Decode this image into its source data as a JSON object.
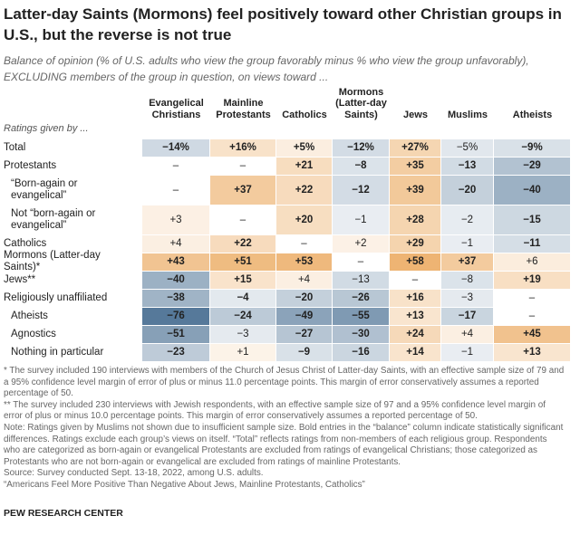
{
  "chart_data": {
    "type": "heatmap",
    "title": "Latter-day Saints (Mormons) feel positively toward other Christian groups in U.S., but the reverse is not true",
    "subtitle": "Balance of opinion (% of U.S. adults who view the group favorably minus % who view the group unfavorably), EXCLUDING members of the group in question, on views toward ...",
    "row_header": "Ratings given by ...",
    "columns": [
      "Evangelical\nChristians",
      "Mainline\nProtestants",
      "Catholics",
      "Mormons\n(Latter-day\nSaints)",
      "Jews",
      "Muslims",
      "Atheists"
    ],
    "positive_color": "#e9a04e",
    "negative_color": "#56799a",
    "rows": [
      {
        "label": "Total",
        "values": [
          -14,
          16,
          5,
          -12,
          27,
          -5,
          -9
        ],
        "value_labels": [
          "−14%",
          "+16%",
          "+5%",
          "−12%",
          "+27%",
          "−5%",
          "−9%"
        ],
        "bold": [
          true,
          true,
          true,
          true,
          true,
          false,
          true
        ]
      },
      {
        "label": "Protestants",
        "values": [
          null,
          null,
          21,
          -8,
          35,
          -13,
          -29
        ],
        "value_labels": [
          "–",
          "–",
          "+21",
          "−8",
          "+35",
          "−13",
          "−29"
        ],
        "bold": [
          false,
          false,
          true,
          true,
          true,
          true,
          true
        ],
        "subgroups": [
          {
            "label": "“Born-again or\nevangelical”",
            "values": [
              null,
              37,
              22,
              -12,
              39,
              -20,
              -40
            ],
            "value_labels": [
              "–",
              "+37",
              "+22",
              "−12",
              "+39",
              "−20",
              "−40"
            ],
            "bold": [
              false,
              true,
              true,
              true,
              true,
              true,
              true
            ]
          },
          {
            "label": "Not “born-again or\nevangelical”",
            "values": [
              3,
              null,
              20,
              -1,
              28,
              -2,
              -15
            ],
            "value_labels": [
              "+3",
              "–",
              "+20",
              "−1",
              "+28",
              "−2",
              "−15"
            ],
            "bold": [
              false,
              false,
              true,
              false,
              true,
              false,
              true
            ]
          }
        ]
      },
      {
        "label": "Catholics",
        "values": [
          4,
          22,
          null,
          2,
          29,
          -1,
          -11
        ],
        "value_labels": [
          "+4",
          "+22",
          "–",
          "+2",
          "+29",
          "−1",
          "−11"
        ],
        "bold": [
          false,
          true,
          false,
          false,
          true,
          false,
          true
        ]
      },
      {
        "label": "Mormons (Latter-day Saints)*",
        "values": [
          43,
          51,
          53,
          null,
          58,
          37,
          6
        ],
        "value_labels": [
          "+43",
          "+51",
          "+53",
          "–",
          "+58",
          "+37",
          "+6"
        ],
        "bold": [
          true,
          true,
          true,
          false,
          true,
          true,
          false
        ]
      },
      {
        "label": "Jews**",
        "values": [
          -40,
          15,
          4,
          -13,
          null,
          -8,
          19
        ],
        "value_labels": [
          "−40",
          "+15",
          "+4",
          "−13",
          "–",
          "−8",
          "+19"
        ],
        "bold": [
          true,
          true,
          false,
          false,
          false,
          false,
          true
        ]
      },
      {
        "label": "Religiously unaffiliated",
        "values": [
          -38,
          -4,
          -20,
          -26,
          16,
          -3,
          null
        ],
        "value_labels": [
          "−38",
          "−4",
          "−20",
          "−26",
          "+16",
          "−3",
          "–"
        ],
        "bold": [
          true,
          true,
          true,
          true,
          true,
          false,
          false
        ],
        "subgroups": [
          {
            "label": "Atheists",
            "values": [
              -76,
              -24,
              -49,
              -55,
              13,
              -17,
              null
            ],
            "value_labels": [
              "−76",
              "−24",
              "−49",
              "−55",
              "+13",
              "−17",
              "–"
            ],
            "bold": [
              true,
              true,
              true,
              true,
              true,
              true,
              false
            ]
          },
          {
            "label": "Agnostics",
            "values": [
              -51,
              -3,
              -27,
              -30,
              24,
              4,
              45
            ],
            "value_labels": [
              "−51",
              "−3",
              "−27",
              "−30",
              "+24",
              "+4",
              "+45"
            ],
            "bold": [
              true,
              false,
              true,
              true,
              true,
              false,
              true
            ]
          },
          {
            "label": "Nothing in particular",
            "values": [
              -23,
              1,
              -9,
              -16,
              14,
              -1,
              13
            ],
            "value_labels": [
              "−23",
              "+1",
              "−9",
              "−16",
              "+14",
              "−1",
              "+13"
            ],
            "bold": [
              true,
              false,
              true,
              true,
              true,
              false,
              true
            ]
          }
        ]
      }
    ],
    "notes": [
      "* The survey included 190 interviews with members of the Church of Jesus Christ of Latter-day Saints, with an effective sample size of 79 and a 95% confidence level margin of error of plus or minus 11.0 percentage points. This margin of error conservatively assumes a reported percentage of 50.",
      "** The survey included 230 interviews with Jewish respondents, with an effective sample size of 97 and a 95% confidence level margin of error of plus or minus 10.0 percentage points. This margin of error conservatively assumes a reported percentage of 50.",
      "Note: Ratings given by Muslims not shown due to insufficient sample size. Bold entries in the “balance” column indicate statistically significant differences. Ratings exclude each group’s views on itself. “Total” reflects ratings from non-members of each religious group. Respondents who are categorized as born-again or evangelical Protestants are excluded from ratings of evangelical Christians; those categorized as Protestants who are not born-again or evangelical are excluded from ratings of mainline Protestants.",
      "Source: Survey conducted Sept. 13-18, 2022, among U.S. adults.",
      "“Americans Feel More Positive Than Negative About Jews, Mainline Protestants, Catholics”"
    ],
    "credit": "PEW RESEARCH CENTER"
  }
}
